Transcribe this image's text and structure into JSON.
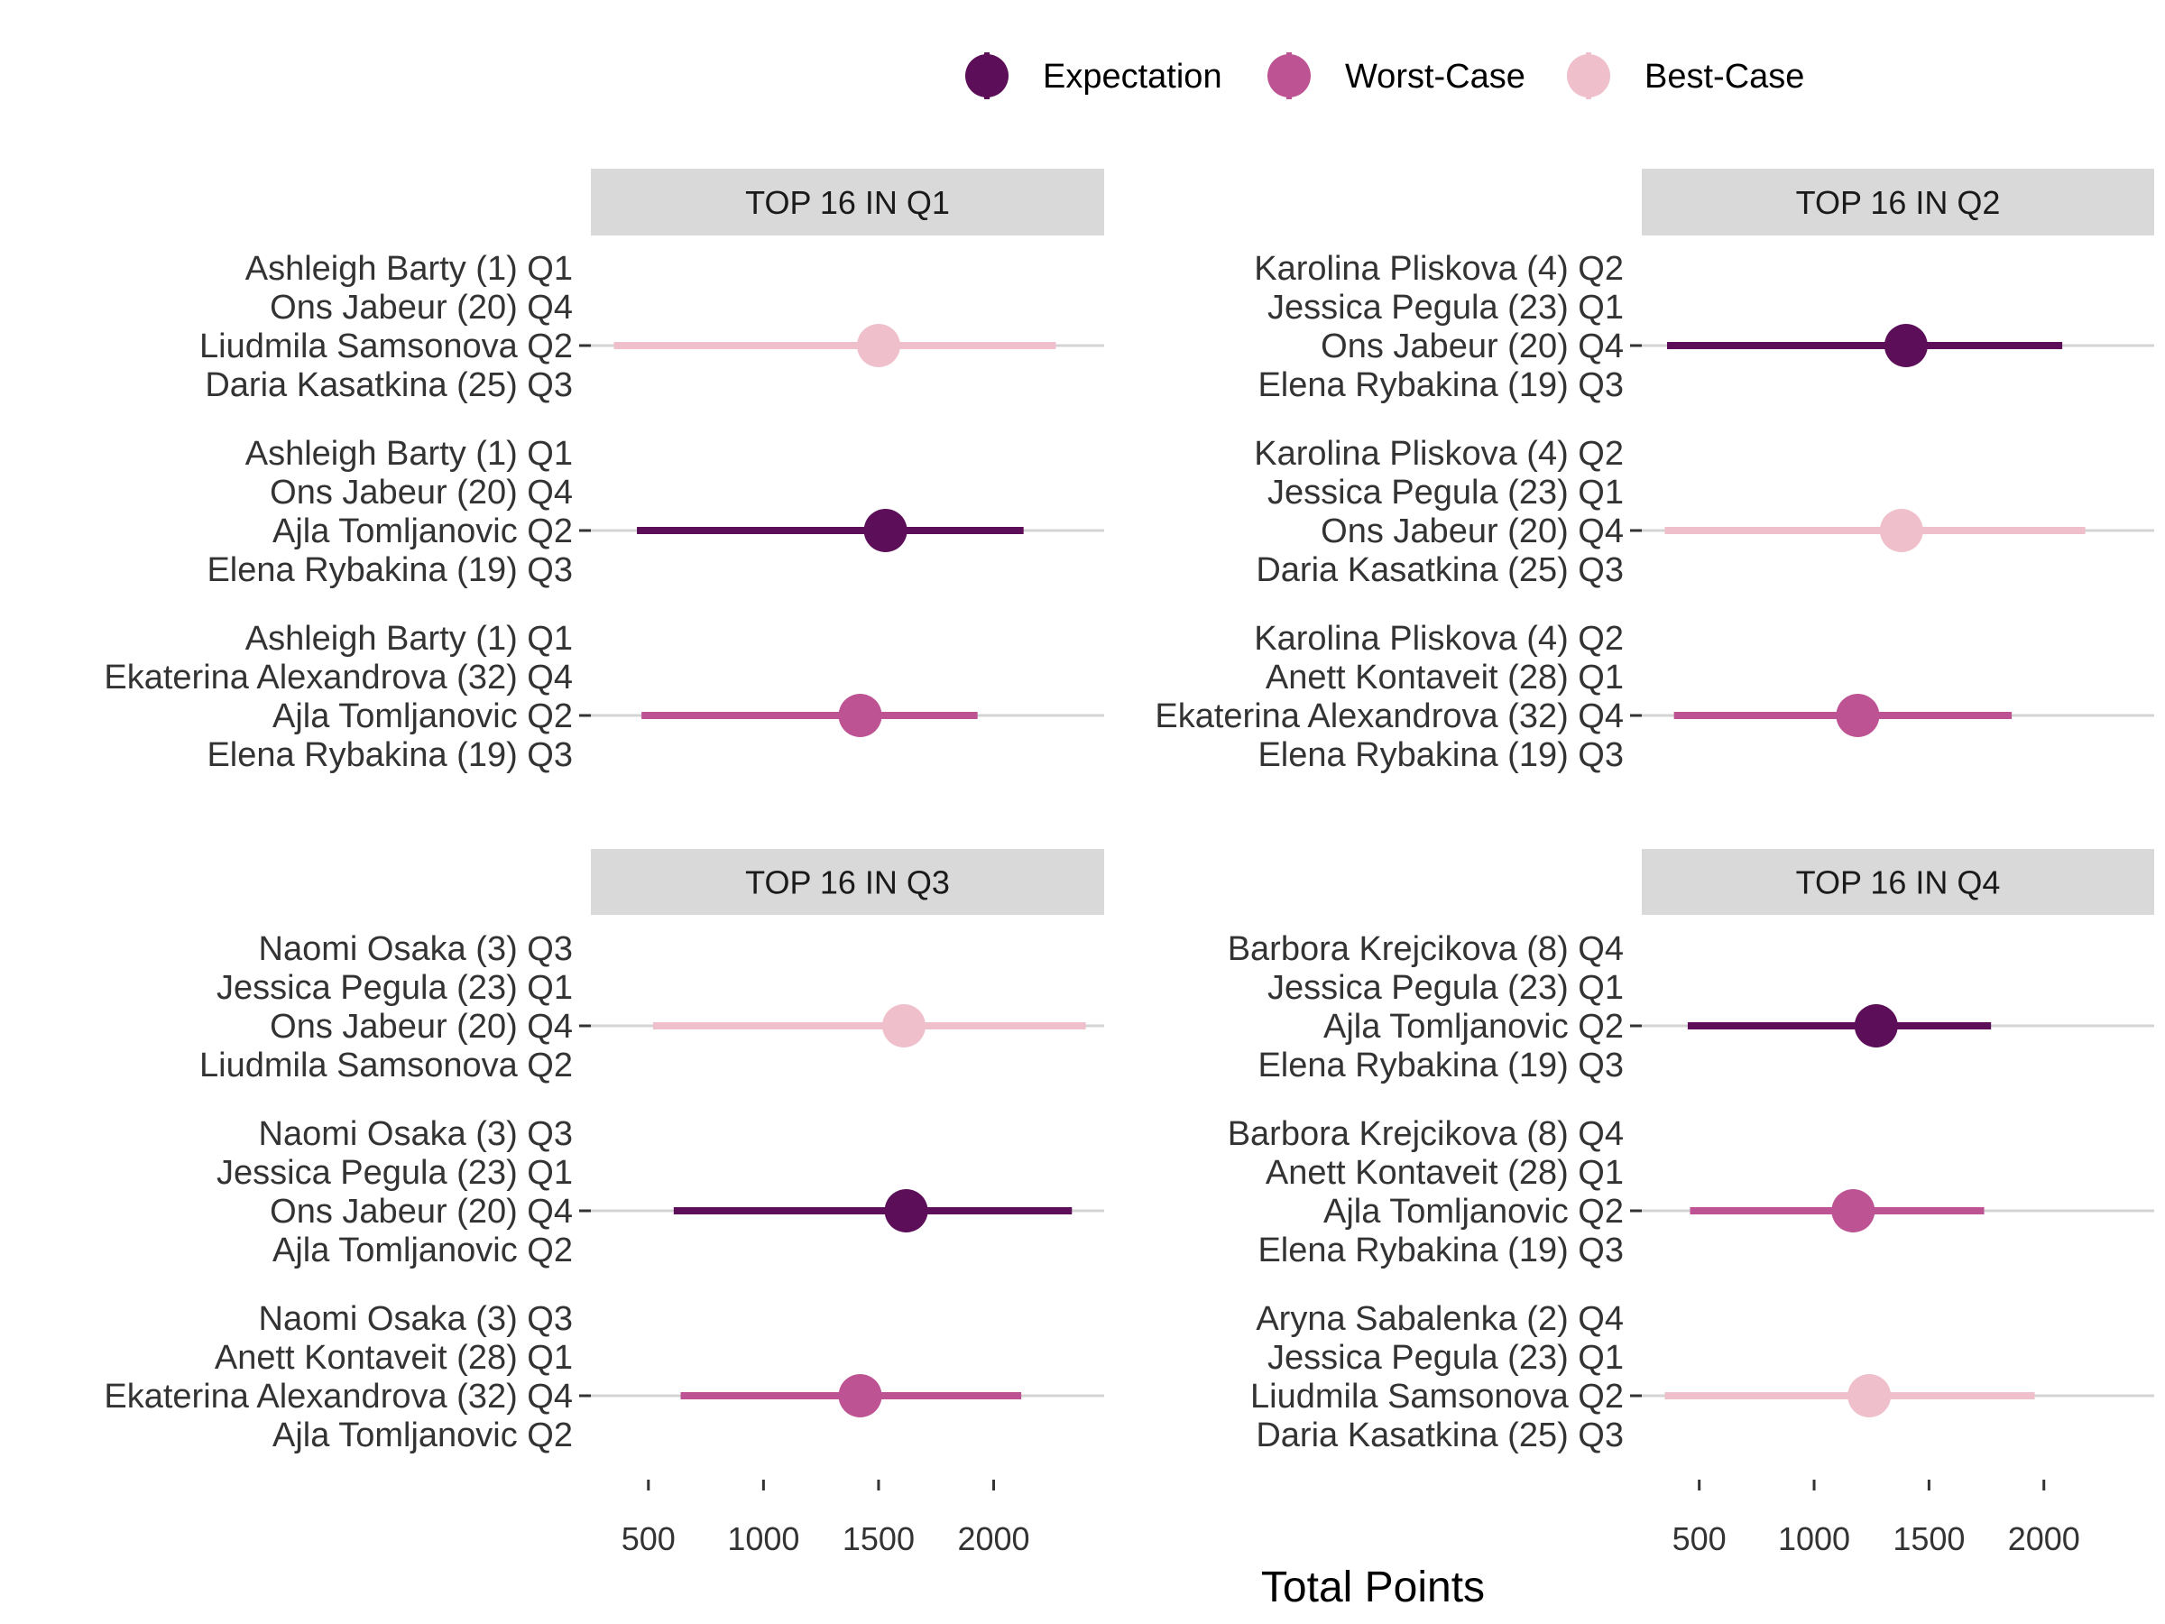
{
  "legend": {
    "entries": [
      {
        "label": "Expectation",
        "color": "#5c0f58"
      },
      {
        "label": "Worst-Case",
        "color": "#bd5393"
      },
      {
        "label": "Best-Case",
        "color": "#efbfcc"
      }
    ]
  },
  "chart_data": {
    "type": "pointrange",
    "xlabel": "Total Points",
    "ylabel": "",
    "xlim": [
      250,
      2480
    ],
    "xticks": [
      500,
      1000,
      1500,
      2000
    ],
    "tick_labels": [
      "500",
      "1000",
      "1500",
      "2000"
    ],
    "grid": true,
    "legend_position": "top",
    "panels": [
      {
        "title": "TOP 16 IN Q1",
        "rows": [
          {
            "labels": [
              "Ashleigh Barty (1) Q1",
              "Ons Jabeur (20) Q4",
              "Liudmila Samsonova  Q2",
              "Daria Kasatkina (25) Q3"
            ],
            "series": "Best-Case",
            "value": 1500,
            "low": 350,
            "high": 2270
          },
          {
            "labels": [
              "Ashleigh Barty (1) Q1",
              "Ons Jabeur (20) Q4",
              "Ajla Tomljanovic  Q2",
              "Elena Rybakina (19) Q3"
            ],
            "series": "Expectation",
            "value": 1530,
            "low": 450,
            "high": 2130
          },
          {
            "labels": [
              "Ashleigh Barty (1) Q1",
              "Ekaterina Alexandrova (32) Q4",
              "Ajla Tomljanovic  Q2",
              "Elena Rybakina (19) Q3"
            ],
            "series": "Worst-Case",
            "value": 1420,
            "low": 470,
            "high": 1930
          }
        ]
      },
      {
        "title": "TOP 16 IN Q2",
        "rows": [
          {
            "labels": [
              "Karolina Pliskova (4) Q2",
              "Jessica Pegula (23) Q1",
              "Ons Jabeur (20) Q4",
              "Elena Rybakina (19) Q3"
            ],
            "series": "Expectation",
            "value": 1400,
            "low": 360,
            "high": 2080
          },
          {
            "labels": [
              "Karolina Pliskova (4) Q2",
              "Jessica Pegula (23) Q1",
              "Ons Jabeur (20) Q4",
              "Daria Kasatkina (25) Q3"
            ],
            "series": "Best-Case",
            "value": 1380,
            "low": 350,
            "high": 2180
          },
          {
            "labels": [
              "Karolina Pliskova (4) Q2",
              "Anett Kontaveit (28) Q1",
              "Ekaterina Alexandrova (32) Q4",
              "Elena Rybakina (19) Q3"
            ],
            "series": "Worst-Case",
            "value": 1190,
            "low": 390,
            "high": 1860
          }
        ]
      },
      {
        "title": "TOP 16 IN Q3",
        "rows": [
          {
            "labels": [
              "Naomi Osaka (3) Q3",
              "Jessica Pegula (23) Q1",
              "Ons Jabeur (20) Q4",
              "Liudmila Samsonova  Q2"
            ],
            "series": "Best-Case",
            "value": 1610,
            "low": 520,
            "high": 2400
          },
          {
            "labels": [
              "Naomi Osaka (3) Q3",
              "Jessica Pegula (23) Q1",
              "Ons Jabeur (20) Q4",
              "Ajla Tomljanovic  Q2"
            ],
            "series": "Expectation",
            "value": 1620,
            "low": 610,
            "high": 2340
          },
          {
            "labels": [
              "Naomi Osaka (3) Q3",
              "Anett Kontaveit (28) Q1",
              "Ekaterina Alexandrova (32) Q4",
              "Ajla Tomljanovic  Q2"
            ],
            "series": "Worst-Case",
            "value": 1420,
            "low": 640,
            "high": 2120
          }
        ]
      },
      {
        "title": "TOP 16 IN Q4",
        "rows": [
          {
            "labels": [
              "Barbora Krejcikova (8) Q4",
              "Jessica Pegula (23) Q1",
              "Ajla Tomljanovic  Q2",
              "Elena Rybakina (19) Q3"
            ],
            "series": "Expectation",
            "value": 1270,
            "low": 450,
            "high": 1770
          },
          {
            "labels": [
              "Barbora Krejcikova (8) Q4",
              "Anett Kontaveit (28) Q1",
              "Ajla Tomljanovic  Q2",
              "Elena Rybakina (19) Q3"
            ],
            "series": "Worst-Case",
            "value": 1170,
            "low": 460,
            "high": 1740
          },
          {
            "labels": [
              "Aryna Sabalenka (2) Q4",
              "Jessica Pegula (23) Q1",
              "Liudmila Samsonova  Q2",
              "Daria Kasatkina (25) Q3"
            ],
            "series": "Best-Case",
            "value": 1240,
            "low": 350,
            "high": 1960
          }
        ]
      }
    ]
  }
}
